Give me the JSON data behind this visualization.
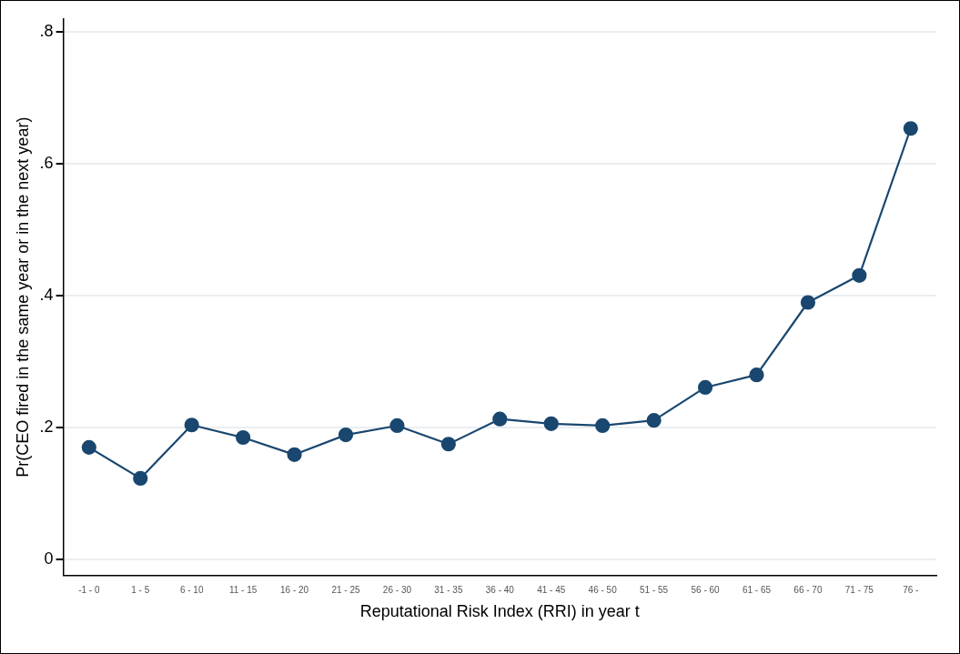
{
  "chart_data": {
    "type": "line",
    "xlabel": "Reputational Risk Index (RRI) in year t",
    "ylabel": "Pr(CEO fired in the same year or in the next year)",
    "categories": [
      "-1 - 0",
      "1 - 5",
      "6 - 10",
      "11 - 15",
      "16 - 20",
      "21 - 25",
      "26 - 30",
      "31 - 35",
      "36 - 40",
      "41 - 45",
      "46 - 50",
      "51 - 55",
      "56 - 60",
      "61 - 65",
      "66 - 70",
      "71 - 75",
      "76 -"
    ],
    "series": [
      {
        "color": "#1a476f",
        "values": [
          0.17,
          0.123,
          0.204,
          0.185,
          0.159,
          0.189,
          0.203,
          0.175,
          0.213,
          0.206,
          0.203,
          0.211,
          0.261,
          0.28,
          0.39,
          0.431,
          0.654
        ]
      }
    ],
    "ylim": [
      -0.024,
      0.82
    ],
    "yticks": [
      {
        "value": 0,
        "label": "0"
      },
      {
        "value": 0.2,
        "label": ".2"
      },
      {
        "value": 0.4,
        "label": ".4"
      },
      {
        "value": 0.6,
        "label": ".6"
      },
      {
        "value": 0.8,
        "label": ".8"
      }
    ],
    "grid": "y",
    "legend": false,
    "marker": "circle",
    "line_style": "solid"
  }
}
